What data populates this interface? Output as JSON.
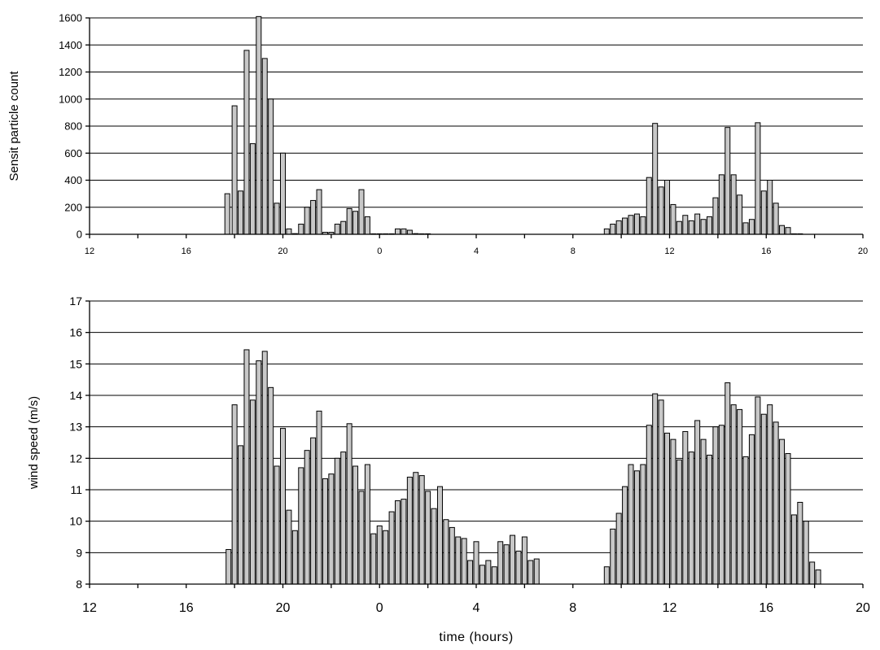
{
  "chart_data": [
    {
      "type": "bar",
      "title": "",
      "xlabel": "",
      "ylabel": "Sensit particle count",
      "ylim": [
        0,
        1600
      ],
      "yticks": [
        0,
        200,
        400,
        600,
        800,
        1000,
        1200,
        1400,
        1600
      ],
      "xlim": [
        12,
        44
      ],
      "xticks": [
        12,
        16,
        20,
        24,
        28,
        32,
        36,
        40,
        44
      ],
      "xtick_labels": [
        "12",
        "16",
        "20",
        "0",
        "4",
        "8",
        "12",
        "16",
        "20"
      ],
      "grid": true,
      "x": [
        17.7,
        18.0,
        18.25,
        18.5,
        18.75,
        19.0,
        19.25,
        19.5,
        19.75,
        20.0,
        20.25,
        20.5,
        20.75,
        21.0,
        21.25,
        21.5,
        21.75,
        22.0,
        22.25,
        22.5,
        22.75,
        23.0,
        23.25,
        23.5,
        23.75,
        24.0,
        24.25,
        24.5,
        24.75,
        25.0,
        25.25,
        25.5,
        25.75,
        26.0,
        33.4,
        33.65,
        33.9,
        34.15,
        34.4,
        34.65,
        34.9,
        35.15,
        35.4,
        35.65,
        35.9,
        36.15,
        36.4,
        36.65,
        36.9,
        37.15,
        37.4,
        37.65,
        37.9,
        38.15,
        38.4,
        38.65,
        38.9,
        39.15,
        39.4,
        39.65,
        39.9,
        40.15,
        40.4,
        40.65,
        40.9,
        41.15,
        41.4
      ],
      "values": [
        300,
        950,
        320,
        1360,
        670,
        1610,
        1300,
        1000,
        230,
        600,
        40,
        5,
        75,
        200,
        250,
        330,
        15,
        15,
        75,
        95,
        190,
        170,
        330,
        130,
        2,
        2,
        2,
        2,
        40,
        40,
        30,
        5,
        2,
        2,
        40,
        75,
        100,
        120,
        140,
        150,
        130,
        420,
        820,
        350,
        400,
        220,
        95,
        140,
        100,
        150,
        110,
        130,
        270,
        440,
        790,
        440,
        290,
        85,
        110,
        825,
        320,
        400,
        230,
        65,
        50,
        2,
        2
      ]
    },
    {
      "type": "bar",
      "title": "",
      "xlabel": "time (hours)",
      "ylabel": "wind speed (m/s)",
      "ylim": [
        8,
        17
      ],
      "yticks": [
        8,
        9,
        10,
        11,
        12,
        13,
        14,
        15,
        16,
        17
      ],
      "xlim": [
        12,
        44
      ],
      "xticks": [
        12,
        16,
        20,
        24,
        28,
        32,
        36,
        40,
        44
      ],
      "xtick_labels": [
        "12",
        "16",
        "20",
        "0",
        "4",
        "8",
        "12",
        "16",
        "20"
      ],
      "grid": true,
      "x": [
        17.75,
        18.0,
        18.25,
        18.5,
        18.75,
        19.0,
        19.25,
        19.5,
        19.75,
        20.0,
        20.25,
        20.5,
        20.75,
        21.0,
        21.25,
        21.5,
        21.75,
        22.0,
        22.25,
        22.5,
        22.75,
        23.0,
        23.25,
        23.5,
        23.75,
        24.0,
        24.25,
        24.5,
        24.75,
        25.0,
        25.25,
        25.5,
        25.75,
        26.0,
        26.25,
        26.5,
        26.75,
        27.0,
        27.25,
        27.5,
        27.75,
        28.0,
        28.25,
        28.5,
        28.75,
        29.0,
        29.25,
        29.5,
        29.75,
        30.0,
        30.25,
        30.5,
        33.4,
        33.65,
        33.9,
        34.15,
        34.4,
        34.65,
        34.9,
        35.15,
        35.4,
        35.65,
        35.9,
        36.15,
        36.4,
        36.65,
        36.9,
        37.15,
        37.4,
        37.65,
        37.9,
        38.15,
        38.4,
        38.65,
        38.9,
        39.15,
        39.4,
        39.65,
        39.9,
        40.15,
        40.4,
        40.65,
        40.9,
        41.15,
        41.4,
        41.65,
        41.9,
        42.15
      ],
      "values": [
        9.1,
        13.7,
        12.4,
        15.45,
        13.85,
        15.1,
        15.4,
        14.25,
        11.75,
        12.95,
        10.35,
        9.7,
        11.7,
        12.25,
        12.65,
        13.5,
        11.35,
        11.5,
        12.0,
        12.2,
        13.1,
        11.75,
        10.95,
        11.8,
        9.6,
        9.85,
        9.7,
        10.3,
        10.65,
        10.7,
        11.4,
        11.55,
        11.45,
        10.95,
        10.4,
        11.1,
        10.05,
        9.8,
        9.5,
        9.45,
        8.75,
        9.35,
        8.6,
        8.75,
        8.55,
        9.35,
        9.25,
        9.55,
        9.05,
        9.5,
        8.75,
        8.8,
        8.55,
        9.75,
        10.25,
        11.1,
        11.8,
        11.6,
        11.8,
        13.05,
        14.05,
        13.85,
        12.8,
        12.6,
        11.95,
        12.85,
        12.2,
        13.2,
        12.6,
        12.1,
        13.0,
        13.05,
        14.4,
        13.7,
        13.55,
        12.05,
        12.75,
        13.95,
        13.4,
        13.7,
        13.15,
        12.6,
        12.15,
        10.2,
        10.6,
        10.0,
        8.7,
        8.45
      ]
    }
  ]
}
